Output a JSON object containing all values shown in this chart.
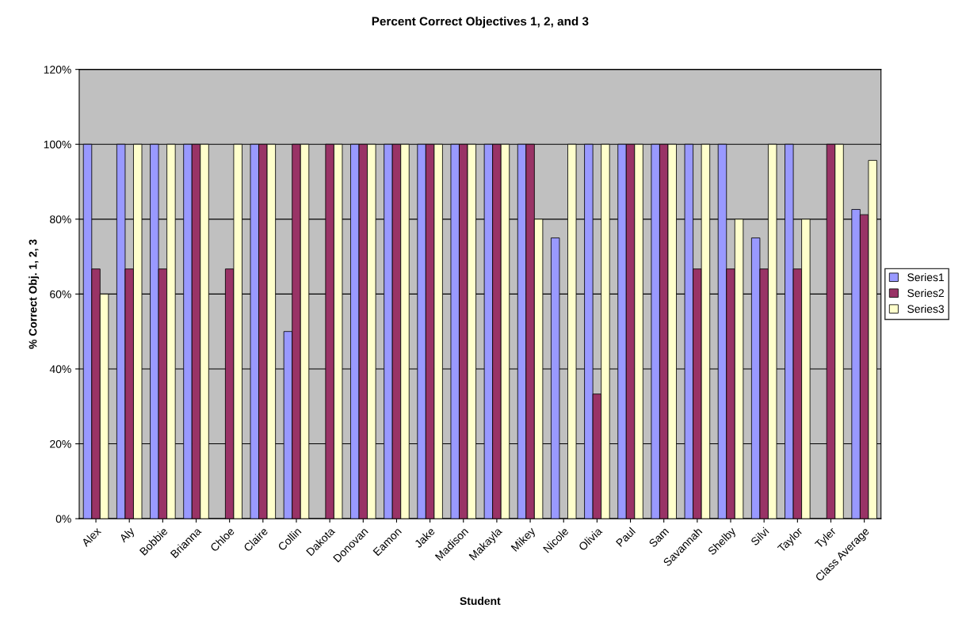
{
  "chart_data": {
    "type": "bar",
    "title": "Percent Correct Objectives 1, 2, and 3",
    "xlabel": "Student",
    "ylabel": "% Correct Obj. 1, 2, 3",
    "categories": [
      "Alex",
      "Aly",
      "Bobbie",
      "Brianna",
      "Chloe",
      "Claire",
      "Collin",
      "Dakota",
      "Donovan",
      "Eamon",
      "Jake",
      "Madison",
      "Makayla",
      "Mikey",
      "Nicole",
      "Olivia",
      "Paul",
      "Sam",
      "Savannah",
      "Shelby",
      "Silvi",
      "Taylor",
      "Tyler",
      "Class Average"
    ],
    "series": [
      {
        "name": "Series1",
        "color": "#9999ff",
        "values": [
          100,
          100,
          100,
          100,
          null,
          100,
          50,
          null,
          100,
          100,
          100,
          100,
          100,
          100,
          75,
          100,
          100,
          100,
          100,
          100,
          75,
          100,
          null,
          82.6
        ]
      },
      {
        "name": "Series2",
        "color": "#993366",
        "values": [
          66.7,
          66.7,
          66.7,
          100,
          66.7,
          100,
          100,
          100,
          100,
          100,
          100,
          100,
          100,
          100,
          null,
          33.3,
          100,
          100,
          66.7,
          66.7,
          66.7,
          66.7,
          100,
          81.2
        ]
      },
      {
        "name": "Series3",
        "color": "#ffffcc",
        "values": [
          60,
          100,
          100,
          100,
          100,
          100,
          100,
          100,
          100,
          100,
          100,
          100,
          100,
          80,
          100,
          100,
          100,
          100,
          100,
          80,
          100,
          80,
          100,
          95.7
        ]
      }
    ],
    "ylim": [
      0,
      120
    ],
    "yticks": [
      {
        "value": 0,
        "label": "0%"
      },
      {
        "value": 20,
        "label": "20%"
      },
      {
        "value": 40,
        "label": "40%"
      },
      {
        "value": 60,
        "label": "60%"
      },
      {
        "value": 80,
        "label": "80%"
      },
      {
        "value": 100,
        "label": "100%"
      },
      {
        "value": 120,
        "label": "120%"
      }
    ],
    "grid": "y",
    "legend": "right"
  }
}
